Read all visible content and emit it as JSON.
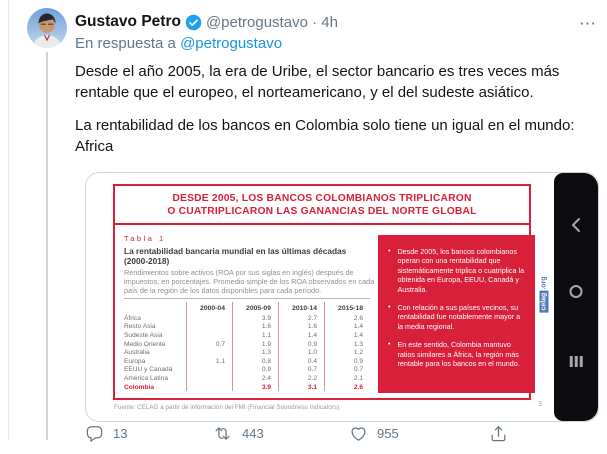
{
  "tweet": {
    "author": "Gustavo Petro",
    "handle_time": "@petrogustavo · 4h",
    "reply_prefix": "En respuesta a",
    "reply_handle": "@petrogustavo",
    "body_p1": "Desde el año 2005, la era de Uribe, el sector bancario es tres veces más rentable que el europeo, el norteamericano, y el del sudeste asiático.",
    "body_p2": "La rentabilidad de los bancos en Colombia solo tiene un igual en el mundo: Africa",
    "actions": {
      "replies": "13",
      "retweets": "443",
      "likes": "955"
    }
  },
  "icons": {
    "more_glyph": "⋯",
    "more": "more-horizontal",
    "verified": "verified-badge",
    "reply": "reply-bubble",
    "retweet": "retweet-arrows",
    "like": "heart",
    "share": "share-arrow",
    "nav_back": "back-chevron",
    "nav_home": "home-circle",
    "nav_recents": "recents-bars"
  },
  "slide": {
    "title1": "DESDE 2005, LOS BANCOS COLOMBIANOS TRIPLICARON",
    "title2": "O CUATRIPLICARON LAS GANANCIAS DEL NORTE GLOBAL",
    "tabla_label": "Tabla 1",
    "heading1": "La rentabilidad bancaria mundial en las últimas décadas",
    "heading2": "(2000-2018)",
    "desc": "Rendimientos sobre activos (ROA por sus siglas en inglés) después de impuestos, en porcentajes. Promedio simple de los ROA observados en cada país de la región de los datos disponibles para cada período.",
    "bullet_glyph": "•",
    "table": {
      "columns": [
        "2000-04",
        "2005-09",
        "2010-14",
        "2015-18"
      ],
      "rows": [
        {
          "label": "África",
          "values": [
            "",
            "3.9",
            "2.7",
            "2.6"
          ]
        },
        {
          "label": "Resto Asia",
          "values": [
            "",
            "1.6",
            "1.6",
            "1.4"
          ]
        },
        {
          "label": "Sudeste Asia",
          "values": [
            "",
            "1.1",
            "1.4",
            "1.4"
          ]
        },
        {
          "label": "Medio Oriente",
          "values": [
            "0.7",
            "1.9",
            "0.9",
            "1.3"
          ]
        },
        {
          "label": "Australia",
          "values": [
            "",
            "1.3",
            "1.0",
            "1.2"
          ]
        },
        {
          "label": "Europa",
          "values": [
            "1.1",
            "0.8",
            "0.4",
            "0.9"
          ]
        },
        {
          "label": "EEUU y Canadá",
          "values": [
            "",
            "0.9",
            "0.7",
            "0.7"
          ]
        },
        {
          "label": "América Latina",
          "values": [
            "",
            "2.4",
            "2.2",
            "2.1"
          ]
        },
        {
          "label": "Colombia",
          "values": [
            "",
            "3.9",
            "3.1",
            "2.6"
          ],
          "highlight": true
        }
      ]
    },
    "bullets": [
      "Desde 2005, los bancos colombianos operan con una rentabilidad que sistemáticamente triplica o cuatriplica la obtenida en Europa, EEUU, Canadá y Australia.",
      "Con relación a sus países vecinos, su rentabilidad fue notablemente mayor a la media regional.",
      "En este sentido, Colombia mantuvo ratios similares a África, la región más rentable para los bancos en el mundo.",
      ""
    ],
    "source": "Fuente: CELAG a partir de información del FMI (Financial Soundness Indicators).",
    "page_number": "3",
    "watermark_celag": "celag",
    "watermark_org": ".org",
    "colors": {
      "red": "#d8203a",
      "twitter_blue": "#1da1f2",
      "link_blue": "#1b95e0"
    }
  }
}
